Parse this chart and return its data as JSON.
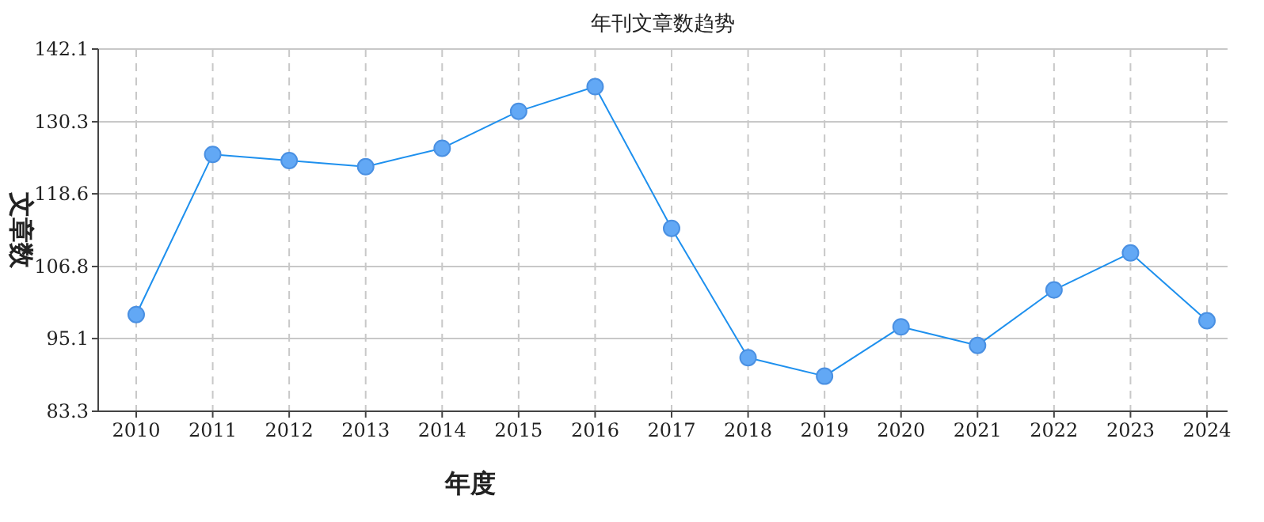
{
  "chart_data": {
    "type": "line",
    "title": "年刊文章数趋势",
    "xlabel": "年度",
    "ylabel": "文章数",
    "categories": [
      "2010",
      "2011",
      "2012",
      "2013",
      "2014",
      "2015",
      "2016",
      "2017",
      "2018",
      "2019",
      "2020",
      "2021",
      "2022",
      "2023",
      "2024"
    ],
    "series": [
      {
        "color": "#1e90ee",
        "values": [
          99,
          125,
          124,
          123,
          126,
          132,
          136,
          113,
          92,
          89,
          97,
          94,
          103,
          109,
          98
        ]
      }
    ],
    "ylim": [
      83.3,
      142.1
    ],
    "yticks": [
      83.3,
      95.1,
      106.8,
      118.6,
      130.3,
      142.1
    ],
    "grid": true,
    "marker": "circle",
    "line_style": "solid"
  }
}
